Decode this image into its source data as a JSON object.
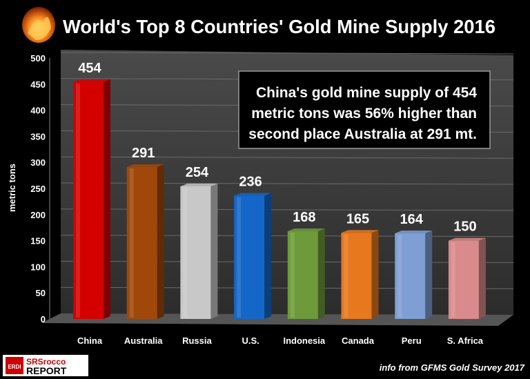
{
  "chart_data": {
    "type": "bar",
    "title": "World's Top 8 Countries' Gold Mine Supply 2016",
    "ylabel": "metric tons",
    "xlabel": "",
    "ylim": [
      0,
      500
    ],
    "yticks": [
      0,
      50,
      100,
      150,
      200,
      250,
      300,
      350,
      400,
      450,
      500
    ],
    "grid": true,
    "categories": [
      "China",
      "Australia",
      "Russia",
      "U.S.",
      "Indonesia",
      "Canada",
      "Peru",
      "S. Africa"
    ],
    "values": [
      454,
      291,
      254,
      236,
      168,
      165,
      164,
      150
    ],
    "data_labels": [
      "454",
      "291",
      "254",
      "236",
      "168",
      "165",
      "164",
      "150"
    ],
    "bar_colors": [
      "#d40000",
      "#a0480a",
      "#c8c8c8",
      "#1467c8",
      "#6e9a3a",
      "#e8781e",
      "#7f9fd4",
      "#d98a8a"
    ],
    "annotation": {
      "lines": [
        "China's gold mine supply of 454",
        "metric tons was 56% higher than",
        "second place Australia at 291 mt."
      ]
    },
    "source_note": "info from GFMS Gold Survey 2017"
  },
  "logo": {
    "badge_text": "ERDI",
    "brand_top": "SRSrocco",
    "brand_bottom": "REPORT"
  },
  "colors": {
    "background": "#000000",
    "plot_background": "#3a3a3a",
    "text": "#ffffff"
  }
}
